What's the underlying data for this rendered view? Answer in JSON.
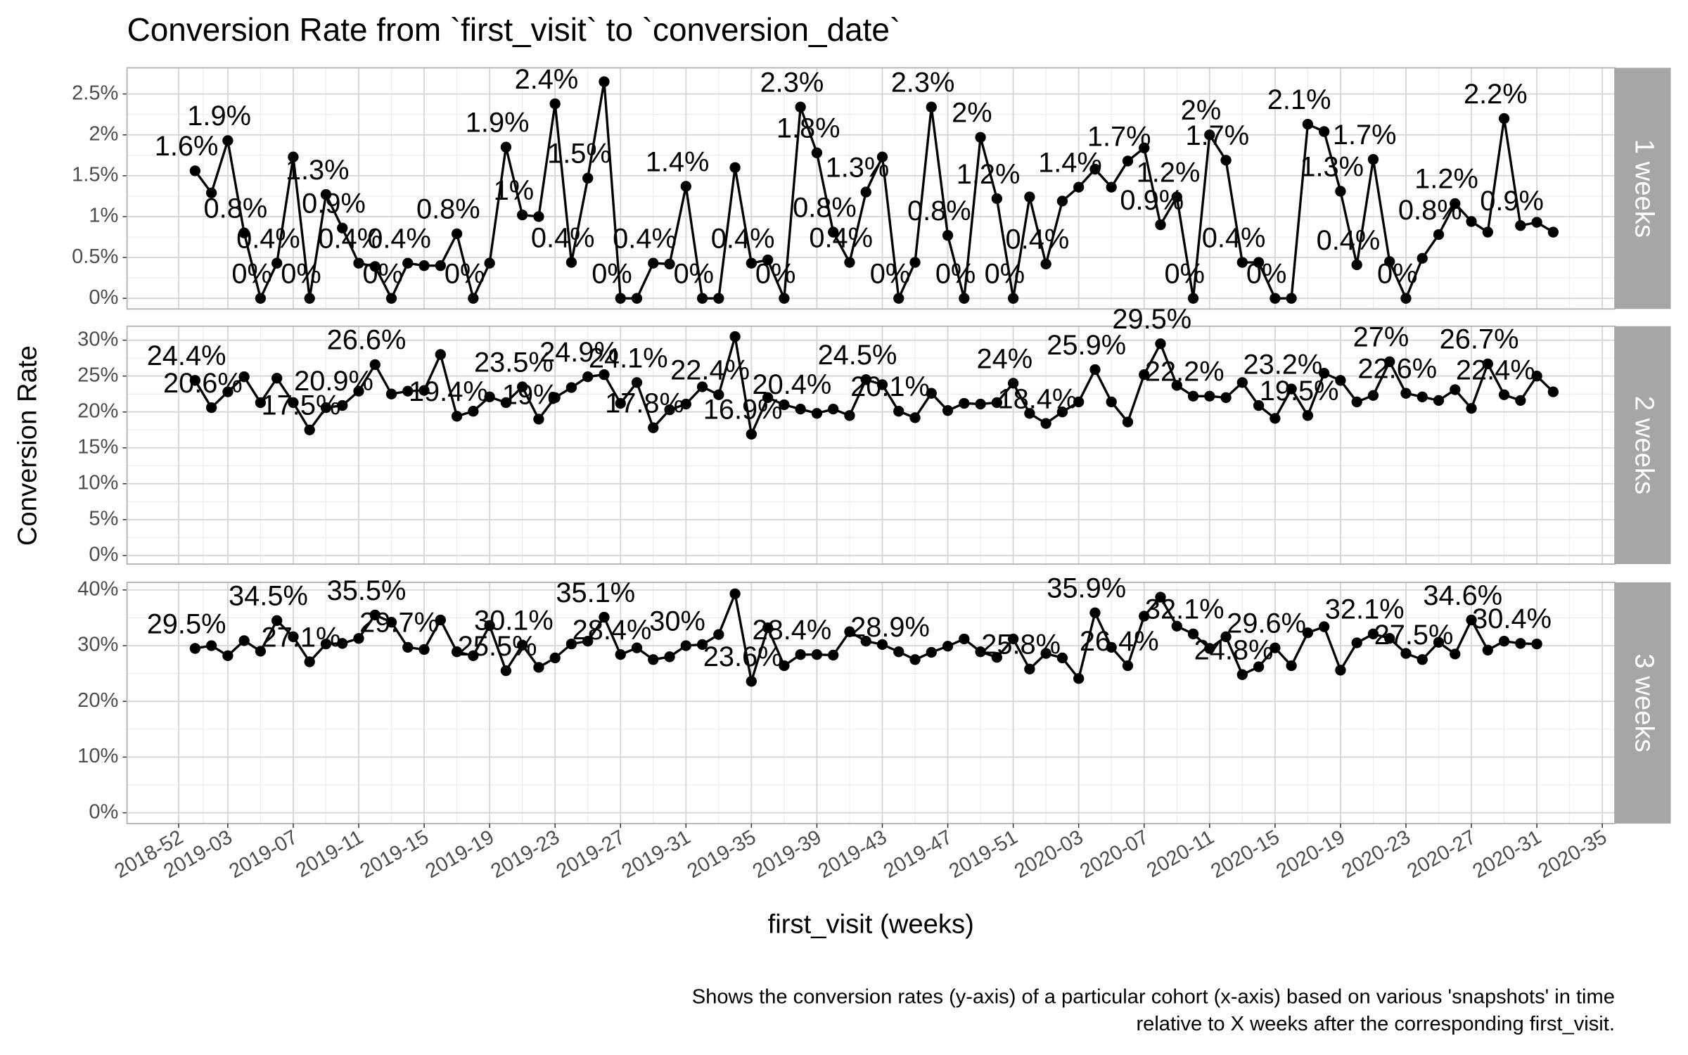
{
  "chart_data": {
    "type": "line",
    "title": "Conversion Rate from `first_visit` to `conversion_date`",
    "x_label": "first_visit (weeks)",
    "y_label": "Conversion Rate",
    "caption": [
      "Shows the conversion rates (y-axis) of a particular cohort (x-axis) based on various 'snapshots' in time",
      "relative to X weeks after the corresponding first_visit."
    ],
    "color": "#000000",
    "grid": true,
    "x": [
      "2019-01",
      "2019-02",
      "2019-03",
      "2019-04",
      "2019-05",
      "2019-06",
      "2019-07",
      "2019-08",
      "2019-09",
      "2019-10",
      "2019-11",
      "2019-12",
      "2019-13",
      "2019-14",
      "2019-15",
      "2019-16",
      "2019-17",
      "2019-18",
      "2019-19",
      "2019-20",
      "2019-21",
      "2019-22",
      "2019-23",
      "2019-24",
      "2019-25",
      "2019-26",
      "2019-27",
      "2019-28",
      "2019-29",
      "2019-30",
      "2019-31",
      "2019-32",
      "2019-33",
      "2019-34",
      "2019-35",
      "2019-36",
      "2019-37",
      "2019-38",
      "2019-39",
      "2019-40",
      "2019-41",
      "2019-42",
      "2019-43",
      "2019-44",
      "2019-45",
      "2019-46",
      "2019-47",
      "2019-48",
      "2019-49",
      "2019-50",
      "2019-51",
      "2019-52",
      "2020-01",
      "2020-02",
      "2020-03",
      "2020-04",
      "2020-05",
      "2020-06",
      "2020-07",
      "2020-08",
      "2020-09",
      "2020-10",
      "2020-11",
      "2020-12",
      "2020-13",
      "2020-14",
      "2020-15",
      "2020-16",
      "2020-17",
      "2020-18",
      "2020-19",
      "2020-20",
      "2020-21",
      "2020-22",
      "2020-23",
      "2020-24",
      "2020-25",
      "2020-26",
      "2020-27",
      "2020-28",
      "2020-29",
      "2020-30",
      "2020-31",
      "2020-32"
    ],
    "xticks": [
      "2018-52",
      "2019-03",
      "2019-07",
      "2019-11",
      "2019-15",
      "2019-19",
      "2019-23",
      "2019-27",
      "2019-31",
      "2019-35",
      "2019-39",
      "2019-43",
      "2019-47",
      "2019-51",
      "2020-03",
      "2020-07",
      "2020-11",
      "2020-15",
      "2020-19",
      "2020-23",
      "2020-27",
      "2020-31",
      "2020-35"
    ],
    "panels": [
      {
        "name": "1 weeks",
        "ylim": [
          -0.13,
          2.82
        ],
        "yticks": [
          {
            "value": 0,
            "label": "0%"
          },
          {
            "value": 0.5,
            "label": "0.5%"
          },
          {
            "value": 1,
            "label": "1%"
          },
          {
            "value": 1.5,
            "label": "1.5%"
          },
          {
            "value": 2,
            "label": "2%"
          },
          {
            "value": 2.5,
            "label": "2.5%"
          }
        ],
        "values": [
          1.56,
          1.29,
          1.93,
          0.8,
          0,
          0.43,
          1.73,
          0,
          1.27,
          0.86,
          0.43,
          0.39,
          0,
          0.43,
          0.4,
          0.4,
          0.79,
          0,
          0.43,
          1.85,
          1.02,
          1.0,
          2.38,
          0.44,
          1.47,
          2.65,
          0,
          0,
          0.43,
          0.42,
          1.37,
          0,
          0,
          1.6,
          0.43,
          0.47,
          0,
          2.34,
          1.78,
          0.81,
          0.44,
          1.3,
          1.73,
          0,
          0.44,
          2.34,
          0.77,
          0,
          1.97,
          1.22,
          0,
          1.24,
          0.42,
          1.19,
          1.36,
          1.58,
          1.36,
          1.68,
          1.84,
          0.9,
          1.24,
          0,
          2.0,
          1.69,
          0.44,
          0.44,
          0,
          0,
          2.13,
          2.04,
          1.31,
          0.41,
          1.7,
          0.45,
          0,
          0.49,
          0.78,
          1.16,
          0.94,
          0.81,
          2.2,
          0.89,
          0.93,
          0.81
        ],
        "value_labels": [
          "1.6%",
          null,
          "1.9%",
          "0.8%",
          "0%",
          "0.4%",
          null,
          "0%",
          "1.3%",
          "0.9%",
          "0.4%",
          null,
          "0%",
          "0.4%",
          null,
          null,
          "0.8%",
          "0%",
          null,
          "1.9%",
          "1%",
          null,
          "2.4%",
          "0.4%",
          "1.5%",
          null,
          "0%",
          null,
          "0.4%",
          null,
          "1.4%",
          "0%",
          null,
          null,
          "0.4%",
          null,
          "0%",
          "2.3%",
          "1.8%",
          "0.8%",
          "0.4%",
          "1.3%",
          null,
          "0%",
          null,
          "2.3%",
          "0.8%",
          "0%",
          "2%",
          "1.2%",
          "0%",
          null,
          "0.4%",
          null,
          "1.4%",
          null,
          null,
          "1.7%",
          null,
          "0.9%",
          "1.2%",
          "0%",
          "2%",
          "1.7%",
          "0.4%",
          null,
          "0%",
          null,
          "2.1%",
          null,
          "1.3%",
          "0.4%",
          "1.7%",
          null,
          "0%",
          null,
          "0.8%",
          "1.2%",
          null,
          null,
          "2.2%",
          "0.9%",
          null,
          null
        ]
      },
      {
        "name": "2 weeks",
        "ylim": [
          -1.2,
          31.95
        ],
        "yticks": [
          {
            "value": 0,
            "label": "0%"
          },
          {
            "value": 5,
            "label": "5%"
          },
          {
            "value": 10,
            "label": "10%"
          },
          {
            "value": 15,
            "label": "15%"
          },
          {
            "value": 20,
            "label": "20%"
          },
          {
            "value": 25,
            "label": "25%"
          },
          {
            "value": 30,
            "label": "30%"
          }
        ],
        "values": [
          24.4,
          20.6,
          22.8,
          24.9,
          21.3,
          24.7,
          21.3,
          17.5,
          20.6,
          20.9,
          22.9,
          26.6,
          22.5,
          22.9,
          23.0,
          28.0,
          19.4,
          20.1,
          22.1,
          21.3,
          23.5,
          19.0,
          22.0,
          23.4,
          24.9,
          25.2,
          21.2,
          24.1,
          17.8,
          20.3,
          21.1,
          23.5,
          22.4,
          30.5,
          16.9,
          22.0,
          21.0,
          20.4,
          19.8,
          20.4,
          19.5,
          24.5,
          23.8,
          20.1,
          19.2,
          22.6,
          20.2,
          21.2,
          21.1,
          21.3,
          24.0,
          19.8,
          18.4,
          20.0,
          21.4,
          25.9,
          21.4,
          18.6,
          25.2,
          29.5,
          23.7,
          22.2,
          22.2,
          22.0,
          24.1,
          20.9,
          19.1,
          23.2,
          19.5,
          25.4,
          24.4,
          21.4,
          22.3,
          27.0,
          22.6,
          22.1,
          21.6,
          23.1,
          20.5,
          26.7,
          22.4,
          21.6,
          25.0,
          22.8
        ],
        "value_labels": [
          "24.4%",
          "20.6%",
          null,
          null,
          null,
          null,
          null,
          "17.5%",
          null,
          "20.9%",
          null,
          "26.6%",
          null,
          null,
          null,
          null,
          "19.4%",
          null,
          null,
          null,
          "23.5%",
          "19%",
          null,
          null,
          "24.9%",
          null,
          null,
          "24.1%",
          "17.8%",
          null,
          null,
          null,
          "22.4%",
          null,
          "16.9%",
          null,
          null,
          "20.4%",
          null,
          null,
          null,
          "24.5%",
          null,
          "20.1%",
          null,
          null,
          null,
          null,
          null,
          null,
          "24%",
          null,
          "18.4%",
          null,
          null,
          "25.9%",
          null,
          null,
          null,
          "29.5%",
          null,
          "22.2%",
          null,
          null,
          null,
          null,
          null,
          "23.2%",
          "19.5%",
          null,
          null,
          null,
          null,
          "27%",
          "22.6%",
          null,
          null,
          null,
          null,
          "26.7%",
          "22.4%",
          null,
          null,
          null
        ]
      },
      {
        "name": "3 weeks",
        "ylim": [
          -1.93,
          41.35
        ],
        "yticks": [
          {
            "value": 0,
            "label": "0%"
          },
          {
            "value": 10,
            "label": "10%"
          },
          {
            "value": 20,
            "label": "20%"
          },
          {
            "value": 30,
            "label": "30%"
          },
          {
            "value": 40,
            "label": "40%"
          }
        ],
        "values": [
          29.5,
          30.0,
          28.2,
          30.9,
          29.0,
          34.5,
          31.6,
          27.1,
          30.3,
          30.4,
          31.3,
          35.5,
          34.2,
          29.7,
          29.3,
          34.6,
          28.9,
          28.2,
          33.6,
          25.5,
          30.1,
          26.1,
          27.8,
          30.3,
          30.8,
          35.1,
          28.4,
          29.6,
          27.5,
          28.0,
          30.0,
          30.2,
          32.0,
          39.3,
          23.6,
          33.2,
          26.4,
          28.4,
          28.4,
          28.3,
          32.5,
          30.8,
          30.2,
          28.9,
          27.5,
          28.8,
          29.9,
          31.2,
          28.9,
          27.9,
          31.2,
          25.8,
          28.6,
          27.8,
          24.1,
          35.9,
          29.7,
          26.4,
          35.3,
          38.7,
          33.5,
          32.1,
          29.5,
          31.6,
          24.8,
          26.2,
          29.6,
          26.4,
          32.3,
          33.4,
          25.6,
          30.5,
          32.1,
          31.3,
          28.6,
          27.5,
          30.6,
          28.5,
          34.6,
          29.2,
          30.8,
          30.4,
          30.3,
          null
        ],
        "value_labels": [
          "29.5%",
          null,
          null,
          null,
          null,
          "34.5%",
          null,
          "27.1%",
          null,
          null,
          null,
          "35.5%",
          null,
          "29.7%",
          null,
          null,
          null,
          null,
          null,
          "25.5%",
          "30.1%",
          null,
          null,
          null,
          null,
          "35.1%",
          "28.4%",
          null,
          null,
          null,
          "30%",
          null,
          null,
          null,
          "23.6%",
          null,
          null,
          "28.4%",
          null,
          null,
          null,
          null,
          null,
          "28.9%",
          null,
          null,
          null,
          null,
          null,
          null,
          null,
          "25.8%",
          null,
          null,
          null,
          "35.9%",
          null,
          "26.4%",
          null,
          null,
          null,
          "32.1%",
          null,
          null,
          "24.8%",
          null,
          "29.6%",
          null,
          null,
          null,
          null,
          null,
          "32.1%",
          null,
          null,
          "27.5%",
          null,
          null,
          "34.6%",
          null,
          null,
          "30.4%",
          null,
          null
        ]
      }
    ]
  }
}
